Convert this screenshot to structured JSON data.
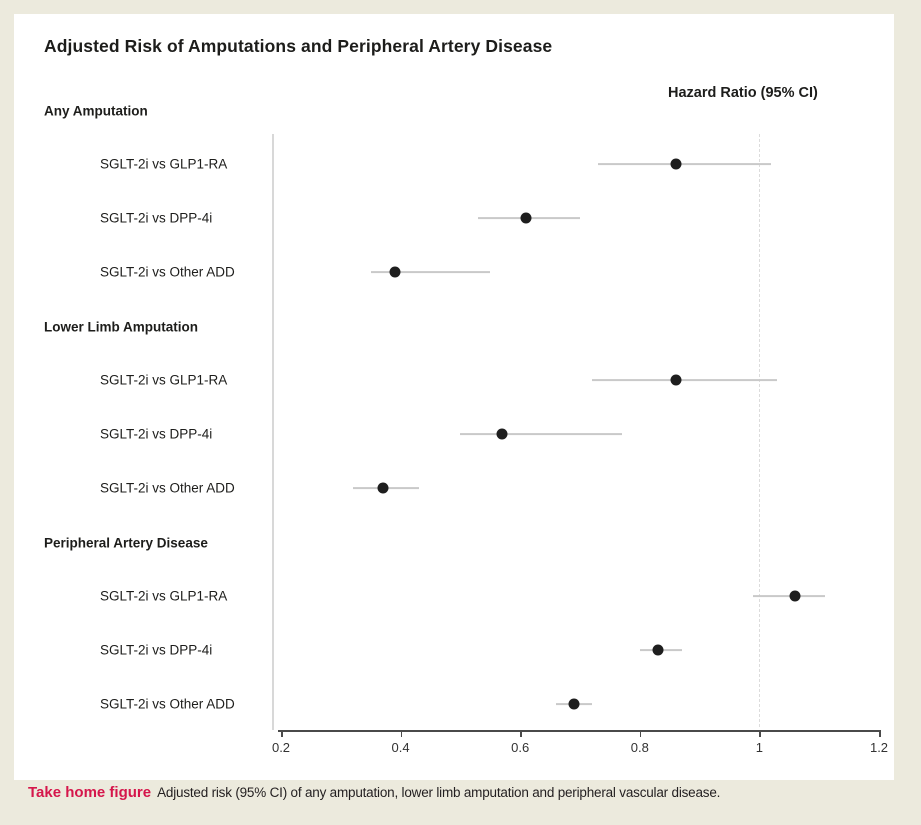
{
  "page": {
    "title": "Adjusted Risk of Amputations and Peripheral Artery Disease",
    "axis_header": "Hazard Ratio (95% CI)",
    "caption_label": "Take home figure",
    "caption_text": "Adjusted risk (95% CI) of any amputation, lower limb amputation and peripheral vascular disease."
  },
  "colors": {
    "frame_bg": "#ECEADD",
    "panel_bg": "#FFFFFF",
    "text": "#1D1D1B",
    "caption_red": "#D5164B",
    "point": "#1E1E1E",
    "ci_line": "#C9C9C9",
    "axis_line": "#4A4A4A",
    "reference_dashed_line": "#DCDCDC"
  },
  "chart_data": {
    "type": "forest",
    "title": "Adjusted Risk of Amputations and Peripheral Artery Disease",
    "value_label": "Hazard Ratio (95% CI)",
    "xlim": [
      0.2,
      1.2
    ],
    "x_ticks": [
      0.2,
      0.4,
      0.6,
      0.8,
      1,
      1.2
    ],
    "x_tick_labels": [
      "0.2",
      "0.4",
      "0.6",
      "0.8",
      "1",
      "1.2"
    ],
    "reference_line": 1,
    "grid": false,
    "groups": [
      {
        "label": "Any Amputation",
        "rows": [
          {
            "label": "SGLT-2i vs GLP1-RA",
            "hr": 0.86,
            "ci_low": 0.73,
            "ci_high": 1.02
          },
          {
            "label": "SGLT-2i vs DPP-4i",
            "hr": 0.61,
            "ci_low": 0.53,
            "ci_high": 0.7
          },
          {
            "label": "SGLT-2i vs Other ADD",
            "hr": 0.39,
            "ci_low": 0.35,
            "ci_high": 0.55
          }
        ]
      },
      {
        "label": "Lower Limb Amputation",
        "rows": [
          {
            "label": "SGLT-2i vs GLP1-RA",
            "hr": 0.86,
            "ci_low": 0.72,
            "ci_high": 1.03
          },
          {
            "label": "SGLT-2i vs DPP-4i",
            "hr": 0.57,
            "ci_low": 0.5,
            "ci_high": 0.77
          },
          {
            "label": "SGLT-2i vs Other ADD",
            "hr": 0.37,
            "ci_low": 0.32,
            "ci_high": 0.43
          }
        ]
      },
      {
        "label": "Peripheral Artery Disease",
        "rows": [
          {
            "label": "SGLT-2i vs GLP1-RA",
            "hr": 1.06,
            "ci_low": 0.99,
            "ci_high": 1.11
          },
          {
            "label": "SGLT-2i vs DPP-4i",
            "hr": 0.83,
            "ci_low": 0.8,
            "ci_high": 0.87
          },
          {
            "label": "SGLT-2i vs Other ADD",
            "hr": 0.69,
            "ci_low": 0.66,
            "ci_high": 0.72
          }
        ]
      }
    ]
  }
}
